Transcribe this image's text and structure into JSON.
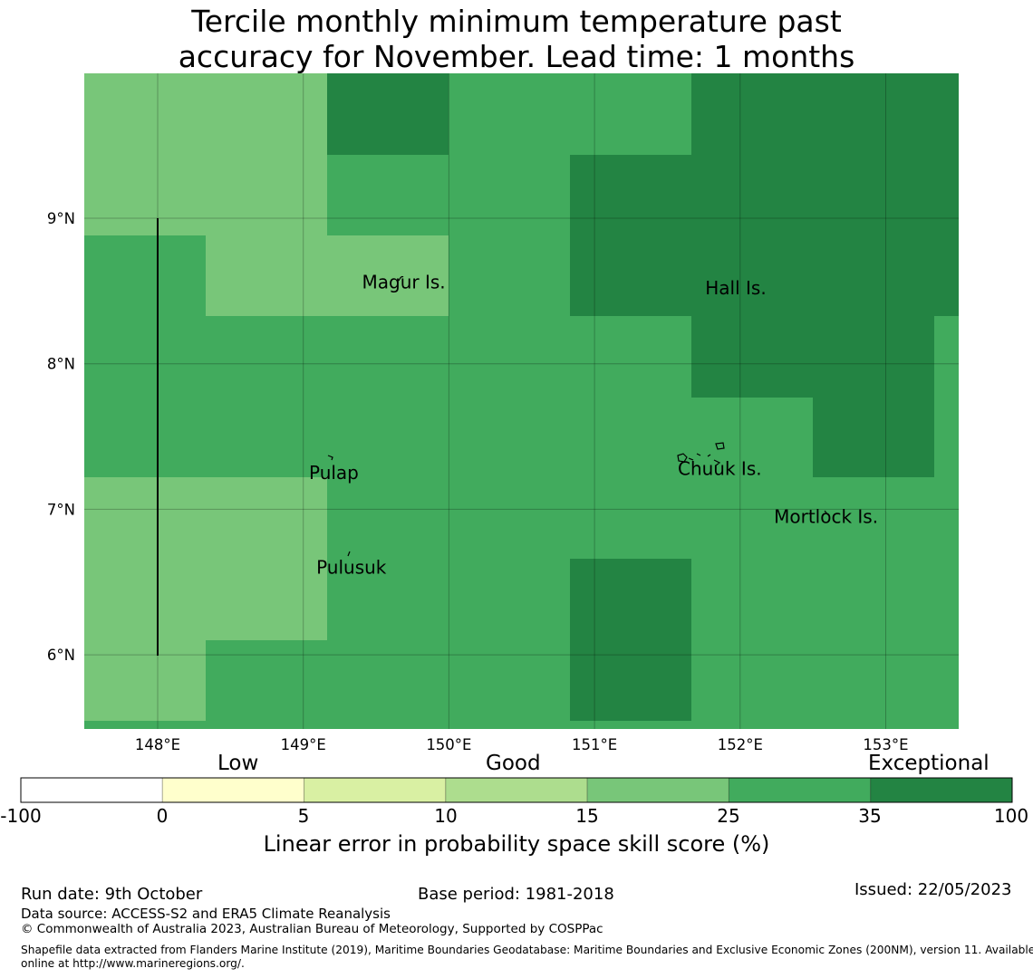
{
  "title": {
    "line1": "Tercile monthly minimum temperature past",
    "line2": "accuracy for November. Lead time: 1 months"
  },
  "map": {
    "lon_ticks": [
      "148°E",
      "149°E",
      "150°E",
      "151°E",
      "152°E",
      "153°E"
    ],
    "lat_ticks": [
      "9°N",
      "8°N",
      "7°N",
      "6°N"
    ],
    "places": [
      {
        "name": "Magur Is.",
        "lon": 149.69,
        "lat": 8.56
      },
      {
        "name": "Hall Is.",
        "lon": 151.97,
        "lat": 8.52
      },
      {
        "name": "Pulap",
        "lon": 149.21,
        "lat": 7.25
      },
      {
        "name": "Chuuk Is.",
        "lon": 151.86,
        "lat": 7.28
      },
      {
        "name": "Mortlock Is.",
        "lon": 152.59,
        "lat": 6.95
      },
      {
        "name": "Pulusuk",
        "lon": 149.33,
        "lat": 6.6
      }
    ],
    "colors": {
      "light": "#78c679",
      "mid": "#41ab5d",
      "dark": "#238443",
      "grid": "#000000"
    }
  },
  "colorbar": {
    "categories": [
      "Low",
      "Good",
      "Exceptional"
    ],
    "ticks": [
      "-100",
      "0",
      "5",
      "10",
      "15",
      "25",
      "35",
      "100"
    ],
    "colors": [
      "#ffffff",
      "#ffffcc",
      "#d9f0a3",
      "#addd8e",
      "#78c679",
      "#41ab5d",
      "#238443"
    ],
    "label": "Linear error in probability space skill score (%)"
  },
  "footer": {
    "run_date": "Run date: 9th October",
    "base_period": "Base period: 1981-2018",
    "issued": "Issued: 22/05/2023",
    "data_source": "Data source: ACCESS-S2 and ERA5 Climate Reanalysis",
    "copyright": "© Commonwealth of Australia 2023, Australian Bureau of Meteorology, Supported by COSPPac",
    "shapefile_line1": "Shapefile data extracted from Flanders Marine Institute (2019), Maritime Boundaries Geodatabase: Maritime Boundaries and Exclusive Economic Zones (200NM), version 11. Available",
    "shapefile_line2": "online at http://www.marineregions.org/."
  }
}
